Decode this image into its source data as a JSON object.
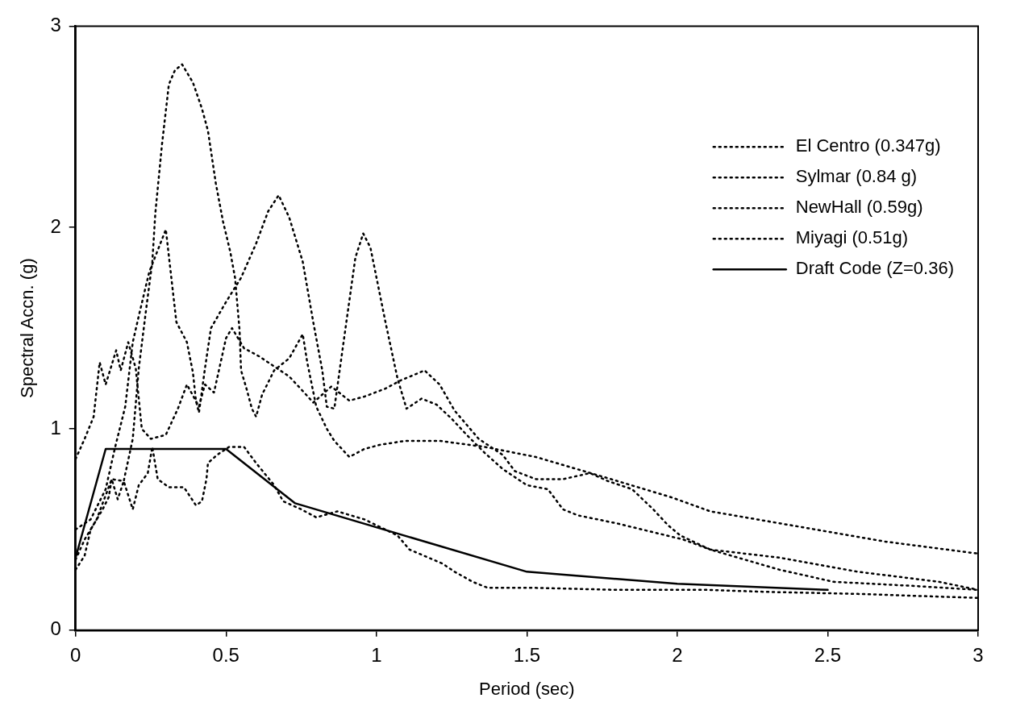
{
  "chart_data": {
    "type": "line",
    "xlabel": "Period (sec)",
    "ylabel": "Spectral Accn. (g)",
    "xlim": [
      0,
      3
    ],
    "xticks": [
      0,
      0.5,
      1,
      1.5,
      2,
      2.5,
      3
    ],
    "ylim": [
      0,
      3
    ],
    "yticks": [
      0,
      1,
      2,
      3
    ],
    "grid": false,
    "legend": "top right",
    "marker": "none",
    "series": [
      {
        "name": "El Centro (0.347g)",
        "color": "#000000",
        "line_style": "dotted",
        "x": [
          0,
          0.03,
          0.05,
          0.09,
          0.11,
          0.12,
          0.14,
          0.16,
          0.19,
          0.21,
          0.24,
          0.255,
          0.273,
          0.31,
          0.36,
          0.4,
          0.42,
          0.435,
          0.44,
          0.47,
          0.51,
          0.56,
          0.6,
          0.66,
          0.69,
          0.75,
          0.8,
          0.87,
          0.96,
          1.07,
          1.11,
          1.22,
          1.26,
          1.32,
          1.37,
          1.53,
          1.8,
          2.1,
          2.3,
          2.6,
          3.0
        ],
        "values": [
          0.3,
          0.37,
          0.5,
          0.6,
          0.66,
          0.75,
          0.65,
          0.74,
          0.6,
          0.72,
          0.78,
          0.91,
          0.75,
          0.71,
          0.71,
          0.62,
          0.64,
          0.75,
          0.83,
          0.87,
          0.91,
          0.91,
          0.83,
          0.72,
          0.64,
          0.6,
          0.56,
          0.59,
          0.55,
          0.47,
          0.4,
          0.33,
          0.29,
          0.24,
          0.21,
          0.21,
          0.2,
          0.2,
          0.19,
          0.18,
          0.16
        ]
      },
      {
        "name": "Sylmar (0.84 g)",
        "color": "#000000",
        "line_style": "dotted",
        "x": [
          0,
          0.03,
          0.07,
          0.12,
          0.16,
          0.19,
          0.21,
          0.235,
          0.255,
          0.265,
          0.287,
          0.31,
          0.33,
          0.354,
          0.39,
          0.42,
          0.44,
          0.466,
          0.49,
          0.514,
          0.53,
          0.545,
          0.55,
          0.568,
          0.586,
          0.6,
          0.62,
          0.66,
          0.71,
          0.755,
          0.77,
          0.8,
          0.835,
          0.86,
          0.91,
          0.96,
          1.01,
          1.095,
          1.21,
          1.36,
          1.53,
          1.78,
          1.98,
          2.11,
          2.42,
          2.69,
          3.0
        ],
        "values": [
          0.35,
          0.45,
          0.55,
          0.75,
          0.74,
          0.95,
          1.3,
          1.6,
          1.83,
          2.07,
          2.41,
          2.71,
          2.78,
          2.81,
          2.72,
          2.59,
          2.48,
          2.22,
          2.03,
          1.88,
          1.75,
          1.49,
          1.29,
          1.2,
          1.1,
          1.06,
          1.17,
          1.29,
          1.35,
          1.47,
          1.33,
          1.11,
          1.0,
          0.94,
          0.86,
          0.9,
          0.92,
          0.94,
          0.94,
          0.91,
          0.86,
          0.75,
          0.66,
          0.59,
          0.51,
          0.44,
          0.38
        ]
      },
      {
        "name": "NewHall (0.59g)",
        "color": "#000000",
        "line_style": "dotted",
        "x": [
          0,
          0.03,
          0.06,
          0.08,
          0.1,
          0.135,
          0.15,
          0.175,
          0.2,
          0.22,
          0.25,
          0.3,
          0.34,
          0.37,
          0.41,
          0.43,
          0.46,
          0.5,
          0.52,
          0.56,
          0.61,
          0.65,
          0.71,
          0.76,
          0.79,
          0.85,
          0.91,
          0.96,
          1.03,
          1.08,
          1.16,
          1.21,
          1.26,
          1.34,
          1.42,
          1.46,
          1.53,
          1.62,
          1.71,
          1.77,
          1.85,
          1.92,
          1.97,
          2.01,
          2.11,
          2.34,
          2.52,
          2.78,
          3.0
        ],
        "values": [
          0.85,
          0.95,
          1.06,
          1.33,
          1.22,
          1.39,
          1.29,
          1.43,
          1.3,
          1.0,
          0.95,
          0.97,
          1.1,
          1.22,
          1.11,
          1.22,
          1.18,
          1.45,
          1.5,
          1.4,
          1.36,
          1.32,
          1.26,
          1.18,
          1.13,
          1.21,
          1.14,
          1.16,
          1.2,
          1.24,
          1.29,
          1.22,
          1.09,
          0.95,
          0.87,
          0.79,
          0.75,
          0.75,
          0.78,
          0.74,
          0.7,
          0.6,
          0.52,
          0.47,
          0.4,
          0.3,
          0.24,
          0.22,
          0.2
        ]
      },
      {
        "name": "Miyagi (0.51g)",
        "color": "#000000",
        "line_style": "dotted",
        "x": [
          0,
          0.05,
          0.1,
          0.13,
          0.165,
          0.19,
          0.21,
          0.245,
          0.3,
          0.335,
          0.37,
          0.39,
          0.4,
          0.41,
          0.43,
          0.45,
          0.5,
          0.55,
          0.6,
          0.64,
          0.675,
          0.71,
          0.755,
          0.79,
          0.82,
          0.835,
          0.86,
          0.9,
          0.93,
          0.956,
          0.98,
          1.03,
          1.07,
          1.1,
          1.15,
          1.2,
          1.25,
          1.3,
          1.36,
          1.42,
          1.5,
          1.57,
          1.62,
          1.67,
          1.8,
          1.91,
          2.02,
          2.11,
          2.34,
          2.6,
          2.87,
          3.0
        ],
        "values": [
          0.5,
          0.55,
          0.7,
          0.9,
          1.11,
          1.43,
          1.56,
          1.78,
          1.99,
          1.53,
          1.43,
          1.28,
          1.14,
          1.08,
          1.3,
          1.5,
          1.63,
          1.75,
          1.92,
          2.08,
          2.16,
          2.05,
          1.83,
          1.53,
          1.29,
          1.11,
          1.1,
          1.53,
          1.85,
          1.97,
          1.9,
          1.53,
          1.25,
          1.1,
          1.15,
          1.12,
          1.05,
          0.97,
          0.88,
          0.8,
          0.72,
          0.7,
          0.6,
          0.57,
          0.53,
          0.49,
          0.45,
          0.4,
          0.36,
          0.29,
          0.24,
          0.2
        ]
      },
      {
        "name": "Draft Code (Z=0.36)",
        "color": "#000000",
        "line_style": "solid",
        "x": [
          0,
          0.1,
          0.5,
          0.73,
          1.5,
          2.0,
          2.5
        ],
        "values": [
          0.36,
          0.9,
          0.9,
          0.63,
          0.29,
          0.23,
          0.2
        ]
      }
    ]
  }
}
